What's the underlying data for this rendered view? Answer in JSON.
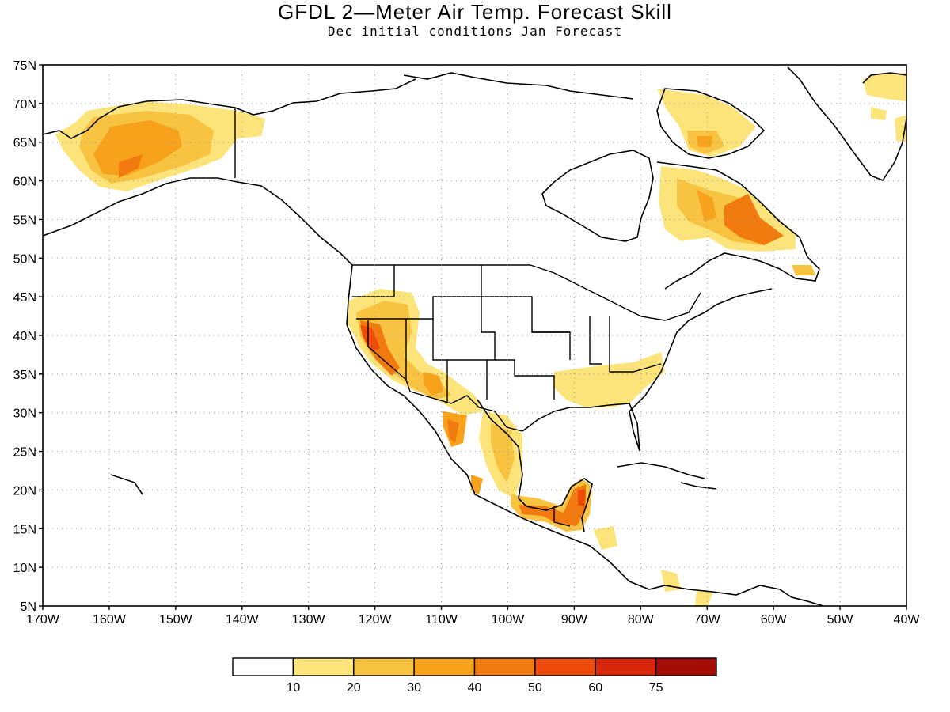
{
  "header": {
    "title": "GFDL 2—Meter Air Temp. Forecast Skill",
    "subtitle": "Dec initial conditions  Jan Forecast"
  },
  "axes": {
    "lat_labels": [
      "75N",
      "70N",
      "65N",
      "60N",
      "55N",
      "50N",
      "45N",
      "40N",
      "35N",
      "30N",
      "25N",
      "20N",
      "15N",
      "10N",
      "5N"
    ],
    "lon_labels": [
      "170W",
      "160W",
      "150W",
      "140W",
      "130W",
      "120W",
      "110W",
      "100W",
      "90W",
      "80W",
      "70W",
      "60W",
      "50W",
      "40W"
    ],
    "lat_range": [
      5,
      75
    ],
    "lon_range": [
      -170,
      -40
    ],
    "grid": "dotted"
  },
  "legend": {
    "placement": "bottom-center",
    "levels": [
      "10",
      "20",
      "30",
      "40",
      "50",
      "60",
      "75"
    ],
    "colors": [
      "#ffffff",
      "#fde47a",
      "#f9c342",
      "#f7a21a",
      "#f27b10",
      "#ee4a09",
      "#d8260a",
      "#a50b05"
    ]
  },
  "skill_regions": [
    {
      "name": "alaska",
      "color": "#f9c342"
    },
    {
      "name": "southwest-us",
      "color": "#f7a21a"
    },
    {
      "name": "southeast-us",
      "color": "#fde47a"
    },
    {
      "name": "mexico",
      "color": "#f9c342"
    },
    {
      "name": "central-america",
      "color": "#f27b10"
    },
    {
      "name": "labrador",
      "color": "#f27b10"
    },
    {
      "name": "baffin",
      "color": "#f9c342"
    },
    {
      "name": "greenland-east",
      "color": "#fde47a"
    }
  ]
}
